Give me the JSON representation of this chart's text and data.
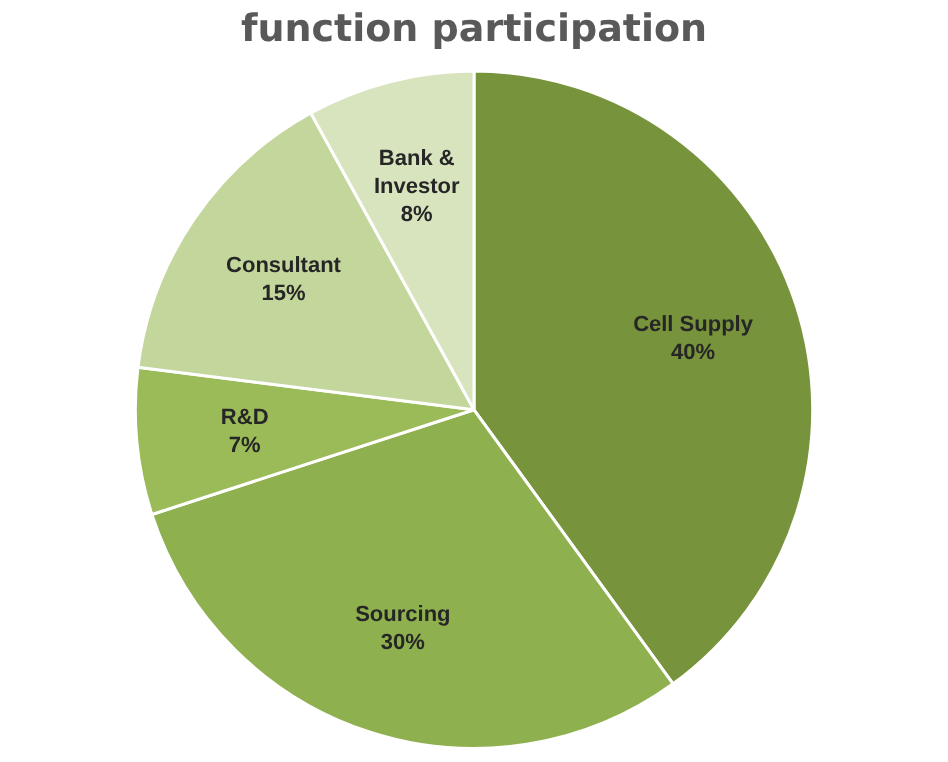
{
  "chart_data": {
    "type": "pie",
    "title": "function participation",
    "categories": [
      "Cell Supply",
      "Sourcing",
      "R&D",
      "Consultant",
      "Bank & Investor"
    ],
    "values": [
      40,
      30,
      7,
      15,
      8
    ],
    "value_labels": [
      "40%",
      "30%",
      "7%",
      "15%",
      "8%"
    ],
    "colors": [
      "#77933c",
      "#8fb04f",
      "#9bbb59",
      "#c3d69b",
      "#d7e4bd"
    ],
    "legend": false
  }
}
